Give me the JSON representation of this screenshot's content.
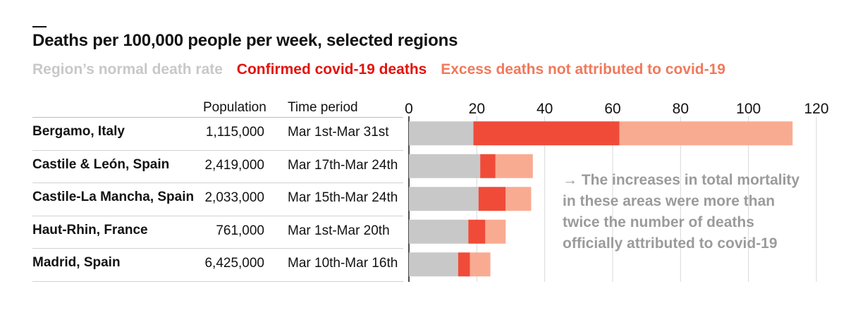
{
  "chart_data": {
    "type": "bar",
    "stacked": true,
    "orientation": "horizontal",
    "title": "Deaths per 100,000 people per week, selected regions",
    "xlim": [
      0,
      120
    ],
    "ticks": [
      0,
      20,
      40,
      60,
      80,
      100,
      120
    ],
    "grid": true,
    "columns": {
      "population": "Population",
      "period": "Time period"
    },
    "series": [
      {
        "name": "Region’s normal death rate",
        "color": "#c8c8c8"
      },
      {
        "name": "Confirmed covid-19 deaths",
        "color": "#e3120b"
      },
      {
        "name": "Excess deaths not attributed to covid-19",
        "color": "#f0795b"
      }
    ],
    "bar_colors": [
      "#c8c8c8",
      "#f04b39",
      "#f9ab92"
    ],
    "rows": [
      {
        "region": "Bergamo, Italy",
        "population": "1,115,000",
        "period": "Mar 1st-Mar 31st",
        "values": [
          19,
          43,
          51
        ]
      },
      {
        "region": "Castile & León, Spain",
        "population": "2,419,000",
        "period": "Mar 17th-Mar 24th",
        "values": [
          21,
          4.5,
          11
        ]
      },
      {
        "region": "Castile-La Mancha, Spain",
        "population": "2,033,000",
        "period": "Mar 15th-Mar 24th",
        "values": [
          20.5,
          8,
          7.5
        ]
      },
      {
        "region": "Haut-Rhin, France",
        "population": "761,000",
        "period": "Mar 1st-Mar 20th",
        "values": [
          17.5,
          5,
          6
        ]
      },
      {
        "region": "Madrid, Spain",
        "population": "6,425,000",
        "period": "Mar 10th-Mar 16th",
        "values": [
          14.5,
          3.5,
          6
        ]
      }
    ],
    "annotation": "→ The increases in total mortality in these areas were more than twice the number of deaths officially attributed to covid-19"
  }
}
